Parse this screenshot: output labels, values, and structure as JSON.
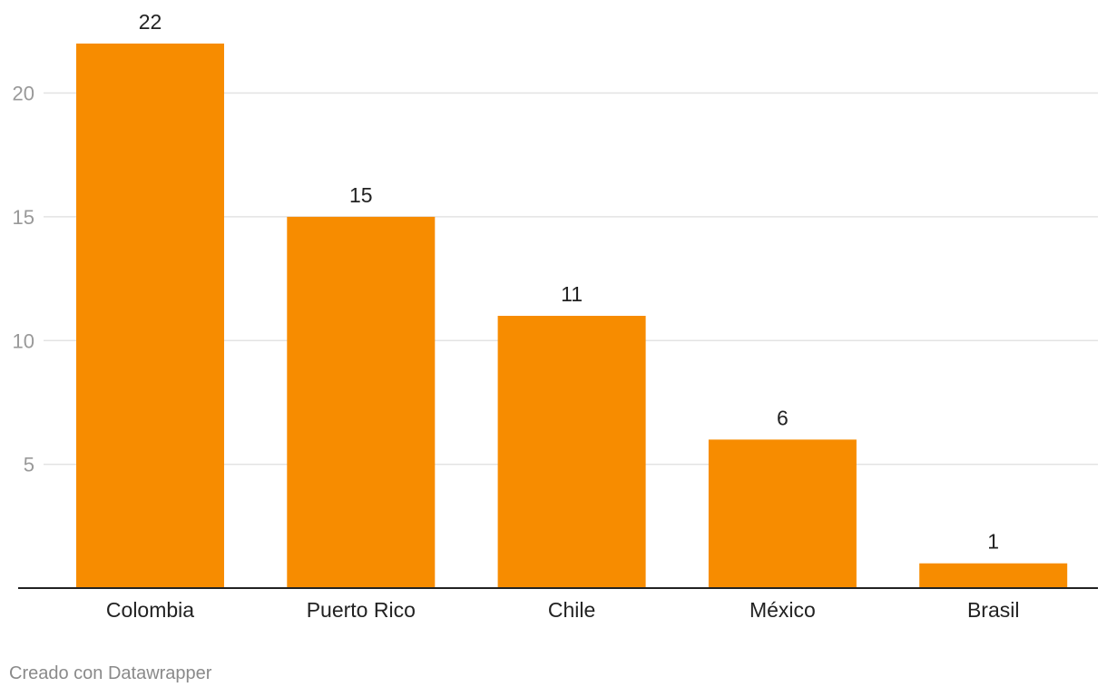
{
  "chart_data": {
    "type": "bar",
    "categories": [
      "Colombia",
      "Puerto Rico",
      "Chile",
      "México",
      "Brasil"
    ],
    "values": [
      22,
      15,
      11,
      6,
      1
    ],
    "yticks": [
      5,
      10,
      15,
      20
    ],
    "ylim": [
      0,
      22
    ],
    "grid": true,
    "bar_color": "#f78c00",
    "data_labels": true
  },
  "footer": {
    "credit": "Creado con Datawrapper"
  }
}
